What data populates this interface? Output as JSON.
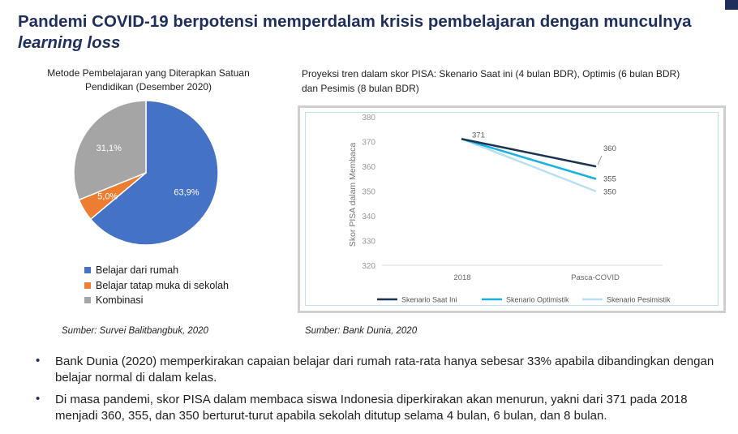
{
  "page": {
    "title_line1": "Pandemi COVID-19 berpotensi memperdalam krisis pembelajaran dengan munculnya",
    "title_line2": "learning loss"
  },
  "pie_panel": {
    "source": "Sumber: Survei Balitbangbuk, 2020"
  },
  "line_panel": {
    "source": "Sumber: Bank Dunia, 2020"
  },
  "bullets": [
    "Bank Dunia (2020) memperkirakan capaian belajar dari rumah rata-rata hanya sebesar 33% apabila dibandingkan dengan belajar normal di dalam kelas.",
    "Di masa pandemi, skor PISA dalam membaca siswa Indonesia diperkirakan akan menurun, yakni dari 371 pada 2018 menjadi 360, 355, dan 350 berturut-turut apabila sekolah ditutup selama 4 bulan, 6 bulan, dan 8 bulan."
  ],
  "colors": {
    "title": "#1f2f5c",
    "pie_blue": "#4472c4",
    "pie_orange": "#ed7d31",
    "pie_gray": "#a5a5a5",
    "line_dark": "#1a3350",
    "line_mid": "#1ab0e0",
    "line_light": "#b8e0f0"
  },
  "chart_data": [
    {
      "type": "pie",
      "title": "Metode Pembelajaran yang Diterapkan Satuan Pendidikan (Desember 2020)",
      "categories": [
        "Belajar dari rumah",
        "Belajar tatap muka di sekolah",
        "Kombinasi"
      ],
      "values": [
        63.9,
        5.0,
        31.1
      ],
      "labels": [
        "63,9%",
        "5,0%",
        "31,1%"
      ],
      "colors": [
        "#4472c4",
        "#ed7d31",
        "#a5a5a5"
      ],
      "legend": "bottom"
    },
    {
      "type": "line",
      "title": "Proyeksi tren dalam skor PISA: Skenario Saat ini (4 bulan BDR), Optimis (6 bulan BDR) dan Pesimis (8 bulan BDR)",
      "xlabel": "",
      "ylabel": "Skor PISA dalam Membaca",
      "categories": [
        "2018",
        "Pasca-COVID"
      ],
      "ylim": [
        320,
        380
      ],
      "yticks": [
        "320",
        "330",
        "340",
        "350",
        "360",
        "370",
        "380"
      ],
      "series": [
        {
          "name": "Skenario Saat Ini",
          "values": [
            371,
            360
          ],
          "end_label": "360",
          "color": "#1a3350"
        },
        {
          "name": "Skenario Optimistik",
          "values": [
            371,
            355
          ],
          "end_label": "355",
          "color": "#1ab0e0"
        },
        {
          "name": "Skenario Pesimistik",
          "values": [
            371,
            350
          ],
          "end_label": "350",
          "color": "#b8e0f0"
        }
      ],
      "start_label": "371",
      "grid": false,
      "legend": "bottom"
    }
  ]
}
